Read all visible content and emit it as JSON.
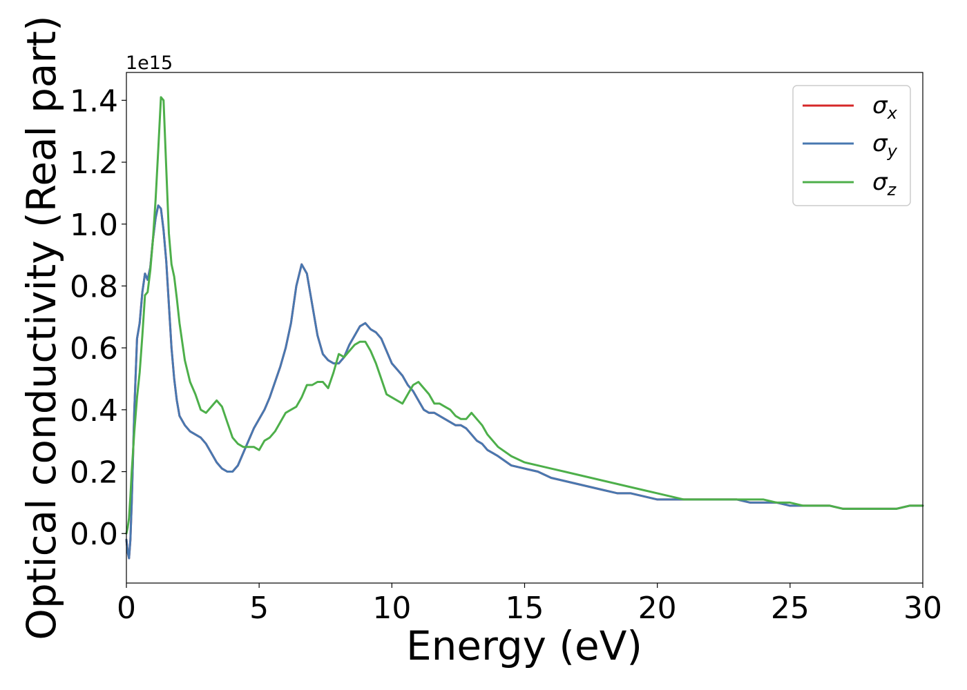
{
  "chart_data": {
    "type": "line",
    "title": "",
    "xlabel": "Energy (eV)",
    "ylabel": "Optical conductivity (Real part)",
    "y_offset_label": "1e15",
    "y_scale": 1000000000000000.0,
    "xlim": [
      0,
      30
    ],
    "ylim": [
      -0.16,
      1.49
    ],
    "x_ticks": [
      0,
      5,
      10,
      15,
      20,
      25,
      30
    ],
    "x_tick_labels": [
      "0",
      "5",
      "10",
      "15",
      "20",
      "25",
      "30"
    ],
    "y_ticks": [
      0.0,
      0.2,
      0.4,
      0.6,
      0.8,
      1.0,
      1.2,
      1.4
    ],
    "y_tick_labels": [
      "0.0",
      "0.2",
      "0.4",
      "0.6",
      "0.8",
      "1.0",
      "1.2",
      "1.4"
    ],
    "grid": false,
    "legend_position": "top-right",
    "series": [
      {
        "name": "σ",
        "subscript": "x",
        "color": "#d62728",
        "x": [
          0,
          0.05,
          0.1,
          0.15,
          0.2,
          0.3,
          0.4,
          0.5,
          0.6,
          0.7,
          0.8,
          0.9,
          1.0,
          1.1,
          1.2,
          1.3,
          1.4,
          1.5,
          1.6,
          1.7,
          1.8,
          1.9,
          2.0,
          2.2,
          2.4,
          2.6,
          2.8,
          3.0,
          3.2,
          3.4,
          3.6,
          3.8,
          4.0,
          4.2,
          4.4,
          4.6,
          4.8,
          5.0,
          5.2,
          5.4,
          5.6,
          5.8,
          6.0,
          6.2,
          6.4,
          6.6,
          6.8,
          7.0,
          7.2,
          7.4,
          7.6,
          7.8,
          8.0,
          8.2,
          8.4,
          8.6,
          8.8,
          9.0,
          9.2,
          9.4,
          9.6,
          9.8,
          10.0,
          10.2,
          10.4,
          10.6,
          10.8,
          11.0,
          11.2,
          11.4,
          11.6,
          11.8,
          12.0,
          12.2,
          12.4,
          12.6,
          12.8,
          13.0,
          13.2,
          13.4,
          13.6,
          13.8,
          14.0,
          14.5,
          15.0,
          15.5,
          16.0,
          16.5,
          17.0,
          17.5,
          18.0,
          18.5,
          19.0,
          19.5,
          20.0,
          20.5,
          21.0,
          21.5,
          22.0,
          22.5,
          23.0,
          23.5,
          24.0,
          24.5,
          25.0,
          25.5,
          26.0,
          26.5,
          27.0,
          27.5,
          28.0,
          28.5,
          29.0,
          29.5,
          30.0
        ],
        "y": [
          -0.02,
          -0.06,
          -0.08,
          -0.02,
          0.1,
          0.4,
          0.63,
          0.68,
          0.78,
          0.84,
          0.82,
          0.86,
          0.95,
          1.02,
          1.06,
          1.05,
          0.98,
          0.88,
          0.74,
          0.6,
          0.5,
          0.43,
          0.38,
          0.35,
          0.33,
          0.32,
          0.31,
          0.29,
          0.26,
          0.23,
          0.21,
          0.2,
          0.2,
          0.22,
          0.26,
          0.3,
          0.34,
          0.37,
          0.4,
          0.44,
          0.49,
          0.54,
          0.6,
          0.68,
          0.8,
          0.87,
          0.84,
          0.74,
          0.64,
          0.58,
          0.56,
          0.55,
          0.55,
          0.57,
          0.61,
          0.64,
          0.67,
          0.68,
          0.66,
          0.65,
          0.63,
          0.59,
          0.55,
          0.53,
          0.51,
          0.48,
          0.46,
          0.43,
          0.4,
          0.39,
          0.39,
          0.38,
          0.37,
          0.36,
          0.35,
          0.35,
          0.34,
          0.32,
          0.3,
          0.29,
          0.27,
          0.26,
          0.25,
          0.22,
          0.21,
          0.2,
          0.18,
          0.17,
          0.16,
          0.15,
          0.14,
          0.13,
          0.13,
          0.12,
          0.11,
          0.11,
          0.11,
          0.11,
          0.11,
          0.11,
          0.11,
          0.1,
          0.1,
          0.1,
          0.09,
          0.09,
          0.09,
          0.09,
          0.08,
          0.08,
          0.08,
          0.08,
          0.08,
          0.09,
          0.09
        ]
      },
      {
        "name": "σ",
        "subscript": "y",
        "color": "#4878b0",
        "x": [
          0,
          0.05,
          0.1,
          0.15,
          0.2,
          0.3,
          0.4,
          0.5,
          0.6,
          0.7,
          0.8,
          0.9,
          1.0,
          1.1,
          1.2,
          1.3,
          1.4,
          1.5,
          1.6,
          1.7,
          1.8,
          1.9,
          2.0,
          2.2,
          2.4,
          2.6,
          2.8,
          3.0,
          3.2,
          3.4,
          3.6,
          3.8,
          4.0,
          4.2,
          4.4,
          4.6,
          4.8,
          5.0,
          5.2,
          5.4,
          5.6,
          5.8,
          6.0,
          6.2,
          6.4,
          6.6,
          6.8,
          7.0,
          7.2,
          7.4,
          7.6,
          7.8,
          8.0,
          8.2,
          8.4,
          8.6,
          8.8,
          9.0,
          9.2,
          9.4,
          9.6,
          9.8,
          10.0,
          10.2,
          10.4,
          10.6,
          10.8,
          11.0,
          11.2,
          11.4,
          11.6,
          11.8,
          12.0,
          12.2,
          12.4,
          12.6,
          12.8,
          13.0,
          13.2,
          13.4,
          13.6,
          13.8,
          14.0,
          14.5,
          15.0,
          15.5,
          16.0,
          16.5,
          17.0,
          17.5,
          18.0,
          18.5,
          19.0,
          19.5,
          20.0,
          20.5,
          21.0,
          21.5,
          22.0,
          22.5,
          23.0,
          23.5,
          24.0,
          24.5,
          25.0,
          25.5,
          26.0,
          26.5,
          27.0,
          27.5,
          28.0,
          28.5,
          29.0,
          29.5,
          30.0
        ],
        "y": [
          -0.02,
          -0.06,
          -0.08,
          -0.02,
          0.1,
          0.4,
          0.63,
          0.68,
          0.78,
          0.84,
          0.82,
          0.86,
          0.95,
          1.02,
          1.06,
          1.05,
          0.98,
          0.88,
          0.74,
          0.6,
          0.5,
          0.43,
          0.38,
          0.35,
          0.33,
          0.32,
          0.31,
          0.29,
          0.26,
          0.23,
          0.21,
          0.2,
          0.2,
          0.22,
          0.26,
          0.3,
          0.34,
          0.37,
          0.4,
          0.44,
          0.49,
          0.54,
          0.6,
          0.68,
          0.8,
          0.87,
          0.84,
          0.74,
          0.64,
          0.58,
          0.56,
          0.55,
          0.55,
          0.57,
          0.61,
          0.64,
          0.67,
          0.68,
          0.66,
          0.65,
          0.63,
          0.59,
          0.55,
          0.53,
          0.51,
          0.48,
          0.46,
          0.43,
          0.4,
          0.39,
          0.39,
          0.38,
          0.37,
          0.36,
          0.35,
          0.35,
          0.34,
          0.32,
          0.3,
          0.29,
          0.27,
          0.26,
          0.25,
          0.22,
          0.21,
          0.2,
          0.18,
          0.17,
          0.16,
          0.15,
          0.14,
          0.13,
          0.13,
          0.12,
          0.11,
          0.11,
          0.11,
          0.11,
          0.11,
          0.11,
          0.11,
          0.1,
          0.1,
          0.1,
          0.09,
          0.09,
          0.09,
          0.09,
          0.08,
          0.08,
          0.08,
          0.08,
          0.08,
          0.09,
          0.09
        ]
      },
      {
        "name": "σ",
        "subscript": "z",
        "color": "#4daf4a",
        "x": [
          0,
          0.05,
          0.1,
          0.15,
          0.2,
          0.3,
          0.4,
          0.5,
          0.6,
          0.7,
          0.8,
          0.9,
          1.0,
          1.1,
          1.2,
          1.3,
          1.4,
          1.5,
          1.6,
          1.7,
          1.8,
          1.9,
          2.0,
          2.2,
          2.4,
          2.6,
          2.8,
          3.0,
          3.2,
          3.4,
          3.6,
          3.8,
          4.0,
          4.2,
          4.4,
          4.6,
          4.8,
          5.0,
          5.2,
          5.4,
          5.6,
          5.8,
          6.0,
          6.2,
          6.4,
          6.6,
          6.8,
          7.0,
          7.2,
          7.4,
          7.6,
          7.8,
          8.0,
          8.2,
          8.4,
          8.6,
          8.8,
          9.0,
          9.2,
          9.4,
          9.6,
          9.8,
          10.0,
          10.2,
          10.4,
          10.6,
          10.8,
          11.0,
          11.2,
          11.4,
          11.6,
          11.8,
          12.0,
          12.2,
          12.4,
          12.6,
          12.8,
          13.0,
          13.2,
          13.4,
          13.6,
          13.8,
          14.0,
          14.5,
          15.0,
          15.5,
          16.0,
          16.5,
          17.0,
          17.5,
          18.0,
          18.5,
          19.0,
          19.5,
          20.0,
          20.5,
          21.0,
          21.5,
          22.0,
          22.5,
          23.0,
          23.5,
          24.0,
          24.5,
          25.0,
          25.5,
          26.0,
          26.5,
          27.0,
          27.5,
          28.0,
          28.5,
          29.0,
          29.5,
          30.0
        ],
        "y": [
          0.0,
          0.02,
          0.05,
          0.12,
          0.2,
          0.33,
          0.44,
          0.52,
          0.64,
          0.77,
          0.78,
          0.85,
          0.95,
          1.08,
          1.24,
          1.41,
          1.4,
          1.18,
          0.97,
          0.87,
          0.83,
          0.76,
          0.68,
          0.56,
          0.49,
          0.45,
          0.4,
          0.39,
          0.41,
          0.43,
          0.41,
          0.36,
          0.31,
          0.29,
          0.28,
          0.28,
          0.28,
          0.27,
          0.3,
          0.31,
          0.33,
          0.36,
          0.39,
          0.4,
          0.41,
          0.44,
          0.48,
          0.48,
          0.49,
          0.49,
          0.47,
          0.52,
          0.58,
          0.57,
          0.59,
          0.61,
          0.62,
          0.62,
          0.59,
          0.55,
          0.5,
          0.45,
          0.44,
          0.43,
          0.42,
          0.45,
          0.48,
          0.49,
          0.47,
          0.45,
          0.42,
          0.42,
          0.41,
          0.4,
          0.38,
          0.37,
          0.37,
          0.39,
          0.37,
          0.35,
          0.32,
          0.3,
          0.28,
          0.25,
          0.23,
          0.22,
          0.21,
          0.2,
          0.19,
          0.18,
          0.17,
          0.16,
          0.15,
          0.14,
          0.13,
          0.12,
          0.11,
          0.11,
          0.11,
          0.11,
          0.11,
          0.11,
          0.11,
          0.1,
          0.1,
          0.09,
          0.09,
          0.09,
          0.08,
          0.08,
          0.08,
          0.08,
          0.08,
          0.09,
          0.09
        ]
      }
    ]
  }
}
